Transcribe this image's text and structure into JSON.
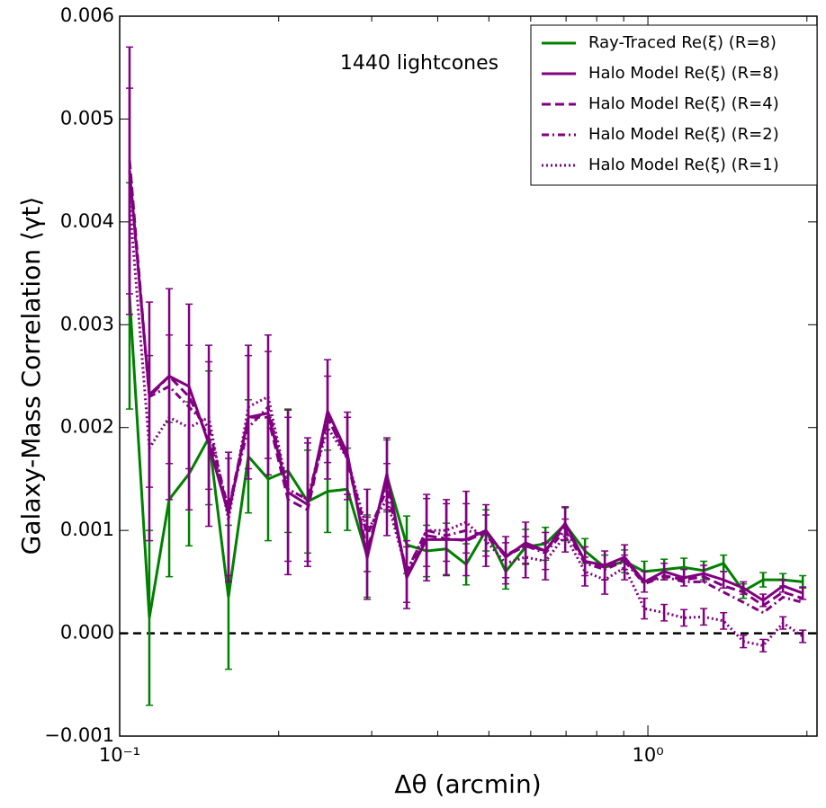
{
  "chart_data": {
    "type": "line",
    "xlabel": "Δθ (arcmin)",
    "ylabel": "Galaxy-Mass Correlation ⟨γt⟩",
    "annotation": "1440 lightcones",
    "xscale": "log",
    "xlim": [
      0.1,
      2.09
    ],
    "xticks": [
      {
        "value": 0.1,
        "label": "10⁻¹"
      },
      {
        "value": 1,
        "label": "10⁰"
      }
    ],
    "xminor_ticks": [
      0.2,
      0.3,
      0.4,
      0.5,
      0.6,
      0.7,
      0.8,
      0.9,
      2
    ],
    "ylim": [
      -0.001,
      0.006
    ],
    "yticks": [
      {
        "value": -0.001,
        "label": "−0.001"
      },
      {
        "value": 0,
        "label": "0.000"
      },
      {
        "value": 0.001,
        "label": "0.001"
      },
      {
        "value": 0.002,
        "label": "0.002"
      },
      {
        "value": 0.003,
        "label": "0.003"
      },
      {
        "value": 0.004,
        "label": "0.004"
      },
      {
        "value": 0.005,
        "label": "0.005"
      },
      {
        "value": 0.006,
        "label": "0.006"
      }
    ],
    "hline": 0,
    "legend": "upper right",
    "x": [
      0.1044,
      0.1138,
      0.1241,
      0.1353,
      0.1475,
      0.1607,
      0.1752,
      0.191,
      0.2083,
      0.227,
      0.2475,
      0.2698,
      0.2941,
      0.3206,
      0.3495,
      0.3811,
      0.4154,
      0.4529,
      0.4937,
      0.5382,
      0.5868,
      0.6397,
      0.6973,
      0.7601,
      0.8287,
      0.9034,
      0.9847,
      1.0735,
      1.1703,
      1.2757,
      1.3907,
      1.5161,
      1.6528,
      1.8018,
      1.9643
    ],
    "series": [
      {
        "name": "Ray-Traced Re(ξ) (R=8)",
        "color": "#008000",
        "dash": "solid",
        "values": [
          0.00328,
          0.00015,
          0.0013,
          0.00155,
          0.0019,
          0.00035,
          0.00172,
          0.0015,
          0.00158,
          0.00128,
          0.00138,
          0.0014,
          0.00075,
          0.00153,
          0.00086,
          0.0008,
          0.00082,
          0.00067,
          0.001,
          0.0006,
          0.00084,
          0.00087,
          0.00106,
          0.0008,
          0.00064,
          0.0007,
          0.0006,
          0.00062,
          0.00064,
          0.00061,
          0.00068,
          0.00041,
          0.00052,
          0.00052,
          0.0005
        ],
        "errors": [
          0.0011,
          0.00085,
          0.00075,
          0.0007,
          0.00065,
          0.0007,
          0.00055,
          0.0006,
          0.0006,
          0.0005,
          0.0004,
          0.0004,
          0.0004,
          0.00035,
          0.00028,
          0.00025,
          0.00025,
          0.0002,
          0.0002,
          0.00017,
          0.00017,
          0.00016,
          0.00016,
          0.00012,
          0.00012,
          0.00011,
          0.0001,
          0.0001,
          9e-05,
          9e-05,
          8e-05,
          7e-05,
          7e-05,
          6e-05,
          6e-05
        ]
      },
      {
        "name": "Halo Model Re(ξ) (R=8)",
        "color": "#800080",
        "dash": "solid",
        "values": [
          0.0045,
          0.00232,
          0.0025,
          0.0024,
          0.00184,
          0.00116,
          0.0021,
          0.00214,
          0.00137,
          0.00125,
          0.00216,
          0.00175,
          0.00073,
          0.00155,
          0.00054,
          0.00091,
          0.00091,
          0.00091,
          0.001,
          0.00074,
          0.00088,
          0.0008,
          0.00107,
          0.0007,
          0.00066,
          0.00074,
          0.0005,
          0.0006,
          0.00054,
          0.00058,
          0.00052,
          0.00044,
          0.00032,
          0.00046,
          0.00039
        ],
        "errors": [
          0.0012,
          0.0009,
          0.00085,
          0.0008,
          0.0008,
          0.0006,
          0.0006,
          0.0006,
          0.0008,
          0.0006,
          0.0005,
          0.0004,
          0.0004,
          0.00035,
          0.0003,
          0.0004,
          0.00035,
          0.00035,
          0.00025,
          0.0002,
          0.0002,
          0.00018,
          0.00016,
          0.00014,
          0.00014,
          0.00012,
          0.0001,
          8e-05,
          8e-05,
          8e-05,
          8e-05,
          6e-05,
          6e-05,
          6e-05,
          6e-05
        ]
      },
      {
        "name": "Halo Model Re(ξ) (R=4)",
        "color": "#800080",
        "dash": "dashed",
        "values": [
          0.0046,
          0.0023,
          0.0025,
          0.0023,
          0.0019,
          0.0012,
          0.0021,
          0.0021,
          0.0013,
          0.0012,
          0.0021,
          0.0017,
          0.0008,
          0.0015,
          0.00055,
          0.00095,
          0.00092,
          0.0009,
          0.00098,
          0.00076,
          0.00086,
          0.0008,
          0.00104,
          0.0007,
          0.00064,
          0.00072,
          0.00049,
          0.00056,
          0.00052,
          0.00055,
          0.00046,
          0.0004,
          0.00027,
          0.0004,
          0.00034
        ]
      },
      {
        "name": "Halo Model Re(ξ) (R=2)",
        "color": "#800080",
        "dash": "dashdot",
        "values": [
          0.0045,
          0.0023,
          0.0024,
          0.0022,
          0.002,
          0.0012,
          0.002,
          0.0022,
          0.0014,
          0.0013,
          0.0021,
          0.0017,
          0.00095,
          0.0014,
          0.0006,
          0.001,
          0.00095,
          0.001,
          0.00095,
          0.00075,
          0.00085,
          0.00078,
          0.001,
          0.00068,
          0.00062,
          0.0007,
          0.00048,
          0.00055,
          0.0005,
          0.0005,
          0.0004,
          0.0003,
          0.0002,
          0.00035,
          0.0003
        ]
      },
      {
        "name": "Halo Model Re(ξ) (R=1)",
        "color": "#800080",
        "dash": "dotted",
        "values": [
          0.0042,
          0.0018,
          0.0021,
          0.002,
          0.0021,
          0.0011,
          0.0022,
          0.0023,
          0.0014,
          0.0013,
          0.002,
          0.0017,
          0.001,
          0.0013,
          0.0006,
          0.001,
          0.001,
          0.00108,
          0.0009,
          0.00068,
          0.00074,
          0.0007,
          0.00095,
          0.0006,
          0.00052,
          0.00064,
          0.00024,
          0.0002,
          0.00015,
          0.00016,
          0.00012,
          -8e-05,
          -0.00012,
          0.0001,
          -3e-05
        ],
        "errors": [
          0.0011,
          0.0009,
          0.0008,
          0.0008,
          0.0007,
          0.0006,
          0.0006,
          0.0006,
          0.0007,
          0.0006,
          0.0005,
          0.0004,
          0.0004,
          0.00035,
          0.0003,
          0.00035,
          0.0003,
          0.0003,
          0.00025,
          0.0002,
          0.0002,
          0.00018,
          0.00016,
          0.00014,
          0.00014,
          0.00012,
          0.0001,
          8e-05,
          8e-05,
          8e-05,
          8e-05,
          6e-05,
          6e-05,
          6e-05,
          6e-05
        ]
      }
    ]
  }
}
